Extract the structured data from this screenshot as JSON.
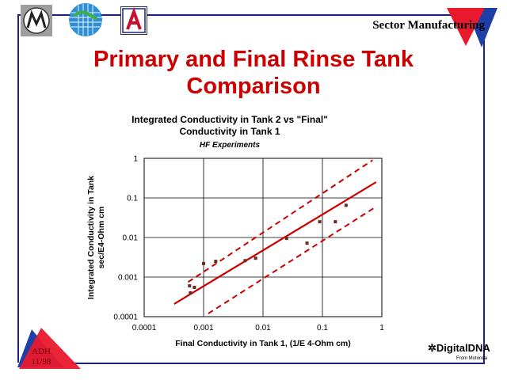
{
  "header": {
    "brand_title": "Sector Manufacturing",
    "logos": [
      "motorola-logo",
      "globe-logo",
      "university-a-logo"
    ],
    "corner_logo": "red-blue-triangle-logo"
  },
  "slide": {
    "title_line1": "Primary and Final Rinse Tank",
    "title_line2": "Comparison"
  },
  "corner_badge": {
    "line1": "ADH",
    "line2": "11/98"
  },
  "footer": {
    "brand": "DigitalDNA",
    "brand_sub": "From Motorola"
  },
  "colors": {
    "accent": "#cc0000",
    "frame": "#1a237e",
    "marker": "#6b2a1e"
  },
  "chart_data": {
    "type": "scatter",
    "title_line1": "Integrated Conductivity in Tank 2 vs \"Final\"",
    "title_line2": "Conductivity in Tank 1",
    "subtitle": "HF Experiments",
    "xlabel": "Final Conductivity in Tank 1, (1/E 4-Ohm cm)",
    "ylabel_line1": "Integrated Conductivity in Tank",
    "ylabel_line2": "sec/E4-Ohm cm",
    "xscale": "log",
    "yscale": "log",
    "xlim": [
      0.0001,
      1
    ],
    "ylim": [
      0.0001,
      1
    ],
    "x_ticks": [
      "0.0001",
      "0.001",
      "0.01",
      "0.1",
      "1"
    ],
    "y_ticks": [
      "0.0001",
      "0.001",
      "0.01",
      "0.1",
      "1"
    ],
    "grid": true,
    "points": [
      {
        "x": 0.00058,
        "y": 0.0006
      },
      {
        "x": 0.0006,
        "y": 0.0004
      },
      {
        "x": 0.0007,
        "y": 0.00055
      },
      {
        "x": 0.001,
        "y": 0.0022
      },
      {
        "x": 0.0016,
        "y": 0.0025
      },
      {
        "x": 0.005,
        "y": 0.0026
      },
      {
        "x": 0.0075,
        "y": 0.003
      },
      {
        "x": 0.025,
        "y": 0.0095
      },
      {
        "x": 0.055,
        "y": 0.0072
      },
      {
        "x": 0.09,
        "y": 0.025
      },
      {
        "x": 0.165,
        "y": 0.025
      },
      {
        "x": 0.25,
        "y": 0.065
      }
    ],
    "fit_line": [
      [
        0.00032,
        0.00021
      ],
      [
        0.8,
        0.25
      ]
    ],
    "upper_bound": [
      [
        0.00055,
        0.00075
      ],
      [
        0.7,
        0.9
      ]
    ],
    "lower_bound": [
      [
        0.0012,
        0.00012
      ],
      [
        0.8,
        0.06
      ]
    ]
  }
}
